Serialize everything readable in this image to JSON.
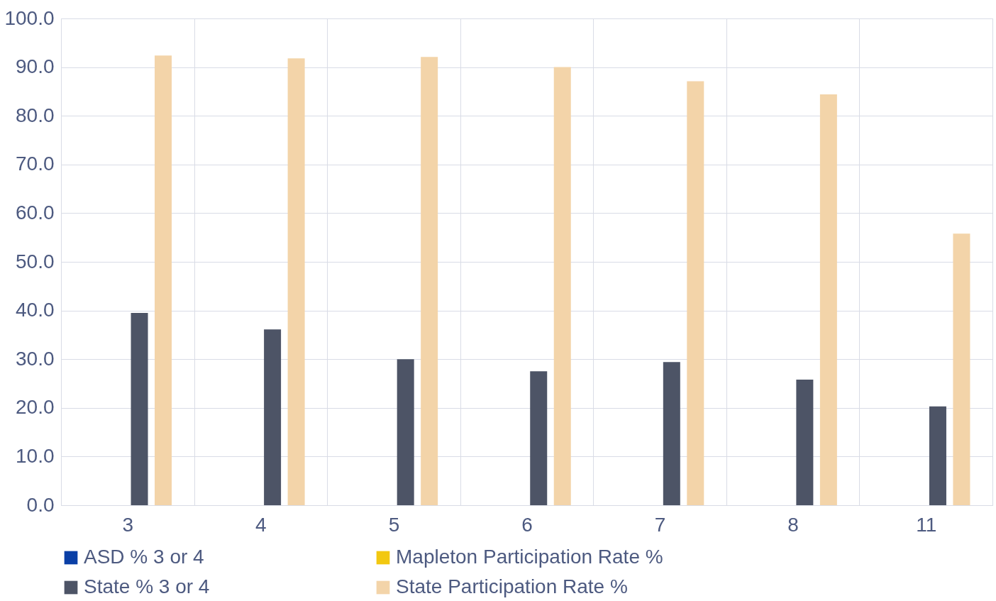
{
  "chart_data": {
    "type": "bar",
    "categories": [
      "3",
      "4",
      "5",
      "6",
      "7",
      "8",
      "11"
    ],
    "series": [
      {
        "name": "ASD % 3 or 4",
        "color": "#0a3fa6",
        "values": [
          null,
          null,
          null,
          null,
          null,
          null,
          null
        ]
      },
      {
        "name": "Mapleton Participation Rate %",
        "color": "#f2c811",
        "values": [
          null,
          null,
          null,
          null,
          null,
          null,
          null
        ]
      },
      {
        "name": "State % 3 or 4",
        "color": "#4d5466",
        "values": [
          39.5,
          36.1,
          30.0,
          27.5,
          29.4,
          25.8,
          20.3
        ]
      },
      {
        "name": "State Participation Rate %",
        "color": "#f3d4a9",
        "values": [
          92.4,
          91.8,
          92.1,
          90.0,
          87.1,
          84.4,
          55.8
        ]
      }
    ],
    "ylim": [
      0,
      100
    ],
    "yticks": [
      {
        "value": 0,
        "label": "0.0"
      },
      {
        "value": 10,
        "label": "10.0"
      },
      {
        "value": 20,
        "label": "20.0"
      },
      {
        "value": 30,
        "label": "30.0"
      },
      {
        "value": 40,
        "label": "40.0"
      },
      {
        "value": 50,
        "label": "50.0"
      },
      {
        "value": 60,
        "label": "60.0"
      },
      {
        "value": 70,
        "label": "70.0"
      },
      {
        "value": 80,
        "label": "80.0"
      },
      {
        "value": 90,
        "label": "90.0"
      },
      {
        "value": 100,
        "label": "100.0"
      }
    ],
    "grid": true,
    "legend": "bottom"
  }
}
